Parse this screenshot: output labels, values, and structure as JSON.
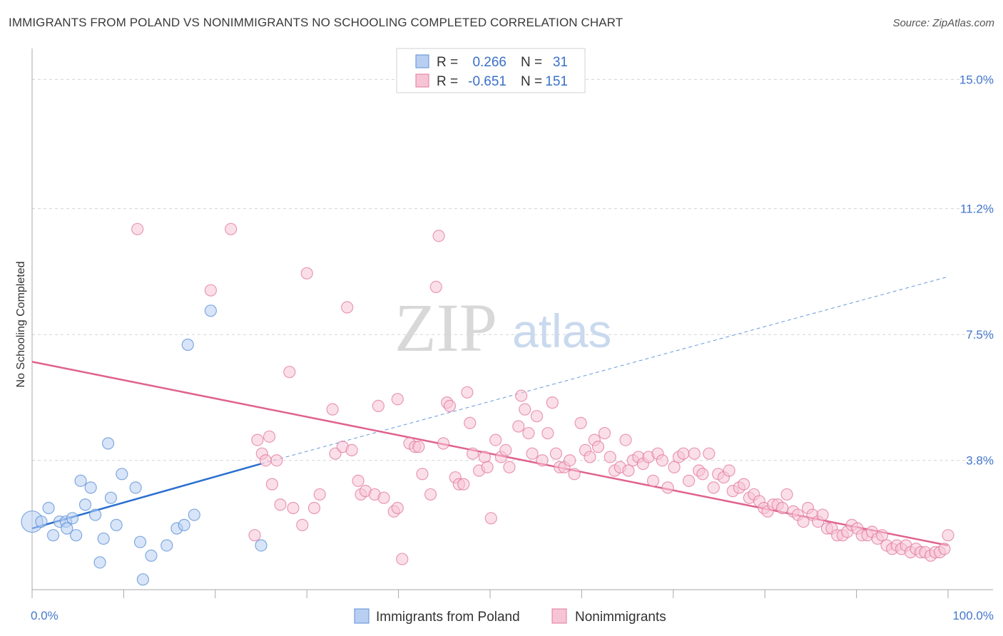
{
  "title": "IMMIGRANTS FROM POLAND VS NONIMMIGRANTS NO SCHOOLING COMPLETED CORRELATION CHART",
  "source": "Source: ZipAtlas.com",
  "watermark": {
    "zip": "ZIP",
    "atlas": "atlas"
  },
  "colors": {
    "blue": "#5b8fd6",
    "blue_fill": "#b8cff2",
    "pink": "#e27aa0",
    "pink_fill": "#f7c4d5",
    "blue_line": "#2a6fcf",
    "pink_line": "#e0628e"
  },
  "legend": {
    "r_label": "R =",
    "n_label": "N =",
    "rows": [
      {
        "r": "0.266",
        "n": "31"
      },
      {
        "r": "-0.651",
        "n": "151"
      }
    ]
  },
  "bottom_legend": [
    "Immigrants from Poland",
    "Nonimmigrants"
  ],
  "chart_data": {
    "type": "scatter",
    "title": "IMMIGRANTS FROM POLAND VS NONIMMIGRANTS NO SCHOOLING COMPLETED CORRELATION CHART",
    "xlabel": "",
    "ylabel": "No Schooling Completed",
    "xlim": [
      0,
      100
    ],
    "ylim": [
      0,
      15.7
    ],
    "x_tick_labels": [
      "0.0%",
      "100.0%"
    ],
    "y_ticks": [
      3.8,
      7.5,
      11.2,
      15.0
    ],
    "y_tick_labels": [
      "3.8%",
      "7.5%",
      "11.2%",
      "15.0%"
    ],
    "grid": true,
    "series": [
      {
        "name": "Immigrants from Poland",
        "trend": {
          "x0": 0,
          "y0": 1.8,
          "x1": 25,
          "y1": 3.7,
          "dashed_to_x": 100,
          "dashed_to_y": 9.2
        },
        "points": [
          [
            0,
            2.0
          ],
          [
            1,
            2.0
          ],
          [
            1.8,
            2.4
          ],
          [
            2.3,
            1.6
          ],
          [
            3,
            2.0
          ],
          [
            3.7,
            2.0
          ],
          [
            3.8,
            1.8
          ],
          [
            4.4,
            2.1
          ],
          [
            4.8,
            1.6
          ],
          [
            5.3,
            3.2
          ],
          [
            5.8,
            2.5
          ],
          [
            6.4,
            3.0
          ],
          [
            6.9,
            2.2
          ],
          [
            7.4,
            0.8
          ],
          [
            7.8,
            1.5
          ],
          [
            8.3,
            4.3
          ],
          [
            8.6,
            2.7
          ],
          [
            9.2,
            1.9
          ],
          [
            9.8,
            3.4
          ],
          [
            11.3,
            3.0
          ],
          [
            11.8,
            1.4
          ],
          [
            12.1,
            0.3
          ],
          [
            13,
            1.0
          ],
          [
            14.7,
            1.3
          ],
          [
            15.8,
            1.8
          ],
          [
            16.6,
            1.9
          ],
          [
            17,
            7.2
          ],
          [
            17.7,
            2.2
          ],
          [
            19.5,
            8.2
          ],
          [
            25,
            1.3
          ]
        ]
      },
      {
        "name": "Nonimmigrants",
        "trend": {
          "x0": 0,
          "y0": 6.7,
          "x1": 100,
          "y1": 1.3
        },
        "points": [
          [
            11.5,
            10.6
          ],
          [
            19.5,
            8.8
          ],
          [
            21.7,
            10.6
          ],
          [
            24.3,
            1.6
          ],
          [
            24.6,
            4.4
          ],
          [
            25.1,
            4.0
          ],
          [
            25.5,
            3.8
          ],
          [
            25.9,
            4.5
          ],
          [
            26.2,
            3.1
          ],
          [
            26.7,
            3.8
          ],
          [
            27.1,
            2.5
          ],
          [
            28.1,
            6.4
          ],
          [
            28.5,
            2.4
          ],
          [
            29.5,
            1.9
          ],
          [
            30,
            9.3
          ],
          [
            30.8,
            2.4
          ],
          [
            31.4,
            2.8
          ],
          [
            32.8,
            5.3
          ],
          [
            33.1,
            4.0
          ],
          [
            33.9,
            4.2
          ],
          [
            34.4,
            8.3
          ],
          [
            34.9,
            4.1
          ],
          [
            35.6,
            3.2
          ],
          [
            35.9,
            2.8
          ],
          [
            36.4,
            2.9
          ],
          [
            37.4,
            2.8
          ],
          [
            37.8,
            5.4
          ],
          [
            38.4,
            2.7
          ],
          [
            39.5,
            2.3
          ],
          [
            39.9,
            2.4
          ],
          [
            39.9,
            5.6
          ],
          [
            40.4,
            0.9
          ],
          [
            41.2,
            4.3
          ],
          [
            41.8,
            4.2
          ],
          [
            42.2,
            4.2
          ],
          [
            42.6,
            3.4
          ],
          [
            43.5,
            2.8
          ],
          [
            44.1,
            8.9
          ],
          [
            44.4,
            10.4
          ],
          [
            44.9,
            4.3
          ],
          [
            45.3,
            5.5
          ],
          [
            45.6,
            5.4
          ],
          [
            46.2,
            3.3
          ],
          [
            46.6,
            3.1
          ],
          [
            47.1,
            3.1
          ],
          [
            47.5,
            5.8
          ],
          [
            47.8,
            4.9
          ],
          [
            48.1,
            4.0
          ],
          [
            48.8,
            3.5
          ],
          [
            49.4,
            3.9
          ],
          [
            49.7,
            3.6
          ],
          [
            50.1,
            2.1
          ],
          [
            50.6,
            4.4
          ],
          [
            51.2,
            3.9
          ],
          [
            51.7,
            4.1
          ],
          [
            52.1,
            3.6
          ],
          [
            53.1,
            4.8
          ],
          [
            53.4,
            5.7
          ],
          [
            53.8,
            5.3
          ],
          [
            54.2,
            4.6
          ],
          [
            54.6,
            4.0
          ],
          [
            55.1,
            5.1
          ],
          [
            55.7,
            3.8
          ],
          [
            56.3,
            4.6
          ],
          [
            56.8,
            5.5
          ],
          [
            57.2,
            4.0
          ],
          [
            57.6,
            3.6
          ],
          [
            58.1,
            3.6
          ],
          [
            58.7,
            3.8
          ],
          [
            59.2,
            3.4
          ],
          [
            59.9,
            4.9
          ],
          [
            60.4,
            4.1
          ],
          [
            60.9,
            3.9
          ],
          [
            61.4,
            4.4
          ],
          [
            61.8,
            4.2
          ],
          [
            62.5,
            4.6
          ],
          [
            63.1,
            3.9
          ],
          [
            63.6,
            3.5
          ],
          [
            64.2,
            3.6
          ],
          [
            64.8,
            4.4
          ],
          [
            65.1,
            3.5
          ],
          [
            65.6,
            3.8
          ],
          [
            66.2,
            3.9
          ],
          [
            66.7,
            3.7
          ],
          [
            67.3,
            3.9
          ],
          [
            67.8,
            3.2
          ],
          [
            68.3,
            4.0
          ],
          [
            68.8,
            3.8
          ],
          [
            69.4,
            3.0
          ],
          [
            70.1,
            3.6
          ],
          [
            70.6,
            3.9
          ],
          [
            71.1,
            4.0
          ],
          [
            71.7,
            3.2
          ],
          [
            72.3,
            4.0
          ],
          [
            72.8,
            3.5
          ],
          [
            73.2,
            3.4
          ],
          [
            73.9,
            4.0
          ],
          [
            74.4,
            3.0
          ],
          [
            74.9,
            3.4
          ],
          [
            75.5,
            3.3
          ],
          [
            76.1,
            3.5
          ],
          [
            76.5,
            2.9
          ],
          [
            77.2,
            3.0
          ],
          [
            77.7,
            3.1
          ],
          [
            78.3,
            2.7
          ],
          [
            78.8,
            2.8
          ],
          [
            79.4,
            2.6
          ],
          [
            79.9,
            2.4
          ],
          [
            80.3,
            2.3
          ],
          [
            80.9,
            2.5
          ],
          [
            81.4,
            2.5
          ],
          [
            81.9,
            2.4
          ],
          [
            82.4,
            2.8
          ],
          [
            83.1,
            2.3
          ],
          [
            83.6,
            2.2
          ],
          [
            84.2,
            2.0
          ],
          [
            84.7,
            2.4
          ],
          [
            85.2,
            2.2
          ],
          [
            85.8,
            2.0
          ],
          [
            86.3,
            2.2
          ],
          [
            86.8,
            1.8
          ],
          [
            87.3,
            1.8
          ],
          [
            87.9,
            1.6
          ],
          [
            88.5,
            1.6
          ],
          [
            89.0,
            1.7
          ],
          [
            89.5,
            1.9
          ],
          [
            90.1,
            1.8
          ],
          [
            90.6,
            1.6
          ],
          [
            91.2,
            1.6
          ],
          [
            91.7,
            1.7
          ],
          [
            92.3,
            1.5
          ],
          [
            92.8,
            1.6
          ],
          [
            93.3,
            1.3
          ],
          [
            93.9,
            1.2
          ],
          [
            94.4,
            1.3
          ],
          [
            94.9,
            1.2
          ],
          [
            95.4,
            1.3
          ],
          [
            95.9,
            1.1
          ],
          [
            96.5,
            1.2
          ],
          [
            97.0,
            1.1
          ],
          [
            97.5,
            1.1
          ],
          [
            98.1,
            1.0
          ],
          [
            98.6,
            1.1
          ],
          [
            99.1,
            1.1
          ],
          [
            99.6,
            1.2
          ],
          [
            100,
            1.6
          ]
        ]
      }
    ]
  }
}
